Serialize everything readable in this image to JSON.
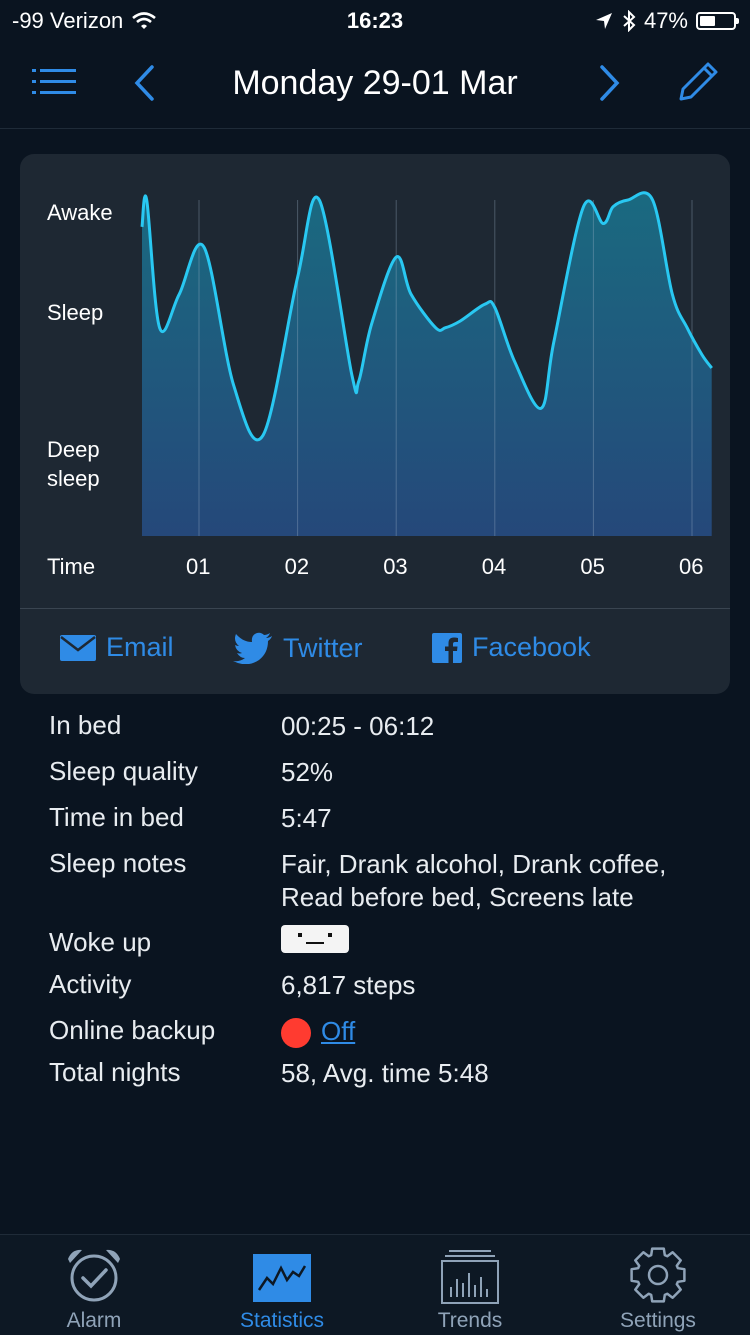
{
  "status_bar": {
    "carrier": "-99 Verizon",
    "time": "16:23",
    "battery_percent": "47%",
    "battery_level": 0.47,
    "icons": [
      "wifi-icon",
      "location-arrow-icon",
      "bluetooth-icon",
      "battery-icon"
    ]
  },
  "header": {
    "title": "Monday 29-01 Mar",
    "icons": [
      "menu-icon",
      "chevron-left-icon",
      "chevron-right-icon",
      "pencil-icon"
    ]
  },
  "chart": {
    "y_labels": [
      "Awake",
      "Sleep",
      "Deep\nsleep"
    ],
    "x_axis_label": "Time",
    "x_ticks": [
      "01",
      "02",
      "03",
      "04",
      "05",
      "06"
    ],
    "colors": {
      "line": "#29c8f2",
      "fill_top": "#1a6a80",
      "fill_bottom": "#25487a"
    }
  },
  "chart_data": {
    "type": "area",
    "y_categories": [
      "Deep sleep",
      "Sleep",
      "Awake"
    ],
    "x_axis": "Time (hours)",
    "xlim": [
      0.42,
      6.2
    ],
    "ylim": [
      0,
      1
    ],
    "x": [
      0.42,
      0.47,
      0.6,
      0.8,
      1.05,
      1.35,
      1.65,
      2.0,
      2.22,
      2.55,
      2.62,
      2.75,
      3.0,
      3.15,
      3.4,
      3.5,
      3.65,
      3.9,
      4.0,
      4.2,
      4.47,
      4.6,
      4.9,
      5.1,
      5.2,
      5.35,
      5.6,
      5.8,
      5.95,
      6.1,
      6.2
    ],
    "y": [
      0.92,
      1.0,
      0.62,
      0.72,
      0.86,
      0.45,
      0.3,
      0.77,
      1.0,
      0.48,
      0.46,
      0.63,
      0.83,
      0.72,
      0.62,
      0.62,
      0.64,
      0.69,
      0.68,
      0.52,
      0.38,
      0.58,
      0.98,
      0.93,
      0.98,
      1.0,
      1.0,
      0.72,
      0.62,
      0.54,
      0.5
    ]
  },
  "share": {
    "email": "Email",
    "twitter": "Twitter",
    "facebook": "Facebook"
  },
  "details": {
    "in_bed_label": "In bed",
    "in_bed_value": "00:25 - 06:12",
    "quality_label": "Sleep quality",
    "quality_value": "52%",
    "time_in_bed_label": "Time in bed",
    "time_in_bed_value": "5:47",
    "notes_label": "Sleep notes",
    "notes_line1": "Fair, Drank alcohol, Drank coffee,",
    "notes_line2": "Read before bed, Screens late",
    "woke_up_label": "Woke up",
    "woke_up_icon": "neutral-face-icon",
    "activity_label": "Activity",
    "activity_value": "6,817 steps",
    "backup_label": "Online backup",
    "backup_value": "Off",
    "total_label": "Total nights",
    "total_value": "58, Avg. time 5:48"
  },
  "tabs": [
    {
      "label": "Alarm",
      "icon": "alarm-clock-icon"
    },
    {
      "label": "Statistics",
      "icon": "statistics-icon",
      "active": true
    },
    {
      "label": "Trends",
      "icon": "trends-icon"
    },
    {
      "label": "Settings",
      "icon": "gear-icon"
    }
  ]
}
